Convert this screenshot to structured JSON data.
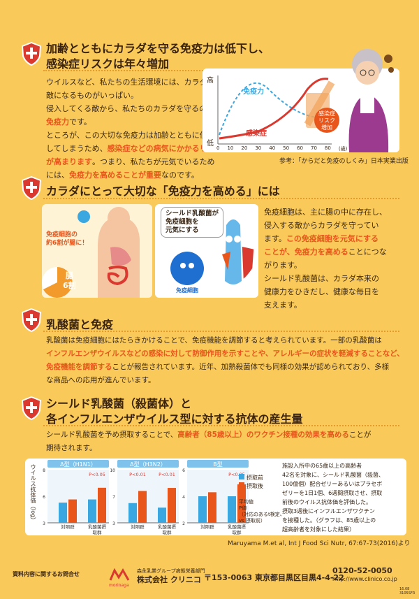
{
  "s1": {
    "title_1": "加齢とともにカラダを守る免疫力は低下し、",
    "title_2": "感染症リスクは年々増加",
    "p1": "ウイルスなど、私たちの生活環境には、カラダの",
    "p2": "敵になるものがいっぱい。",
    "p3": "侵入してくる敵から、私たちのカラダを守るのが",
    "p4": "免疫力",
    "p4b": "です。",
    "p5": "ところが、この大切な免疫力は加齢とともに低下",
    "p6a": "してしまうため、",
    "p6b": "感染症などの病気にかかるリスク",
    "p7a": "が高まります",
    "p7b": "。つまり、私たちが元気でいるため",
    "p8a": "には、",
    "p8b": "免疫力を高めることが重要",
    "p8c": "なのです。",
    "graph": {
      "y_high": "高",
      "y_low": "低",
      "immunity_label": "免疫力",
      "infection_label": "感染症",
      "risk_label": "感染症\nリスク\n増加",
      "x_ticks": [
        "0",
        "10",
        "20",
        "30",
        "40",
        "50",
        "60",
        "70",
        "80"
      ],
      "x_unit": "(歳)"
    },
    "ref": "参考：「からだと免疫のしくみ」日本実業出版"
  },
  "s2": {
    "title": "カラダにとって大切な「免疫力を高める」には",
    "gut_label_1": "免疫細胞の",
    "gut_label_2": "約6割が腸に！",
    "gut_text_1": "腸",
    "gut_text_2": "6割",
    "mascot_bubble": "シールド乳酸菌が\n免疫細胞を\n元気にする",
    "cell_label": "免疫細胞",
    "p1": "免疫細胞は、主に腸の中に存在し、",
    "p2": "侵入する敵からカラダを守ってい",
    "p3a": "ます。",
    "p3b": "この免疫細胞を元気にする",
    "p4": "ことが、免疫力を高める",
    "p4b": "ことにつな",
    "p5": "がります。",
    "p6": "シールド乳酸菌は、カラダ本来の",
    "p7": "健康力をひきだし、健康な毎日を",
    "p8": "支えます。"
  },
  "s3": {
    "title": "乳酸菌と免疫",
    "l1": "乳酸菌は免疫細胞にはたらきかけることで、免疫機能を調節すると考えられています。一部の乳酸菌は",
    "l2": "インフルエンザウイルスなどの感染に対して防御作用を示すことや、アレルギーの症状を軽減することなど、",
    "l3a": "免疫機能を調節する",
    "l3b": "ことが報告されています。近年、加熱殺菌体でも同様の効果が認められており、多様",
    "l4": "な商品への応用が進んでいます。"
  },
  "s4": {
    "title_1": "シールド乳酸菌（殺菌体）と",
    "title_2": "各インフルエンザウイルス型に対する抗体の産生量",
    "l1a": "シールド乳酸菌を予め摂取することで、",
    "l1b": "高齢者（85歳以上）のワクチン接種の効果を高める",
    "l1c": "ことが",
    "l2": "期待されます。",
    "ylabel": "ウイルス抗体価（log）",
    "legend_before": "摂取前",
    "legend_after": "摂取後",
    "note_1": "平均値",
    "note_2": "P値",
    "note_3": "（対応のあるt検定、",
    "note_4": "vs 摂取前）",
    "desc": [
      "施設入所中の65歳以上の高齢者",
      "42名を対象に、シールド乳酸菌（殺菌、",
      "100億個）配合ゼリーあるいはプラセボ",
      "ゼリーを1日1個、6週間摂取させ、摂取",
      "前後のウイルス抗体価を評価した。",
      "摂取3週後にインフルエンザワクチン",
      "を接種した。（グラフは、85歳以上の",
      "超高齢者を対象にした結果）"
    ],
    "citation": "Maruyama M.et al, Int J Food Sci Nutr, 67:67-73(2016)より"
  },
  "chart_data": [
    {
      "type": "bar",
      "title": "A型（H1N1）",
      "categories": [
        "対照群",
        "乳酸菌摂取群"
      ],
      "series": [
        {
          "name": "摂取前",
          "values": [
            4.9,
            5.2
          ]
        },
        {
          "name": "摂取後",
          "values": [
            5.2,
            6.3
          ]
        }
      ],
      "ylim": [
        3,
        8
      ],
      "annotation": "P<0.05"
    },
    {
      "type": "bar",
      "title": "A型（H3N2）",
      "categories": [
        "対照群",
        "乳酸菌摂取群"
      ],
      "series": [
        {
          "name": "摂取前",
          "values": [
            5.6,
            5.0
          ]
        },
        {
          "name": "摂取後",
          "values": [
            7.2,
            7.6
          ]
        }
      ],
      "ylim": [
        3,
        10
      ],
      "annotations": [
        "P<0.01",
        "P<0.01"
      ]
    },
    {
      "type": "bar",
      "title": "B型",
      "categories": [
        "対照群",
        "乳酸菌摂取群"
      ],
      "series": [
        {
          "name": "摂取前",
          "values": [
            4.0,
            4.0
          ]
        },
        {
          "name": "摂取後",
          "values": [
            4.3,
            4.9
          ]
        }
      ],
      "ylim": [
        2,
        6
      ],
      "annotation": "P<0.05"
    }
  ],
  "footer": {
    "inquiry": "資料内容に関するお問合せ",
    "group": "森永乳業グループ病態栄養部門",
    "company": "株式会社 クリニコ",
    "address": "〒153-0063  東京都目黒区目黒4-4-22",
    "phone": "0120-52-0050",
    "url": "http://www.clinico.co.jp",
    "code1": "16.08",
    "code2": "3105SFR",
    "morinaga": "morinaga"
  }
}
